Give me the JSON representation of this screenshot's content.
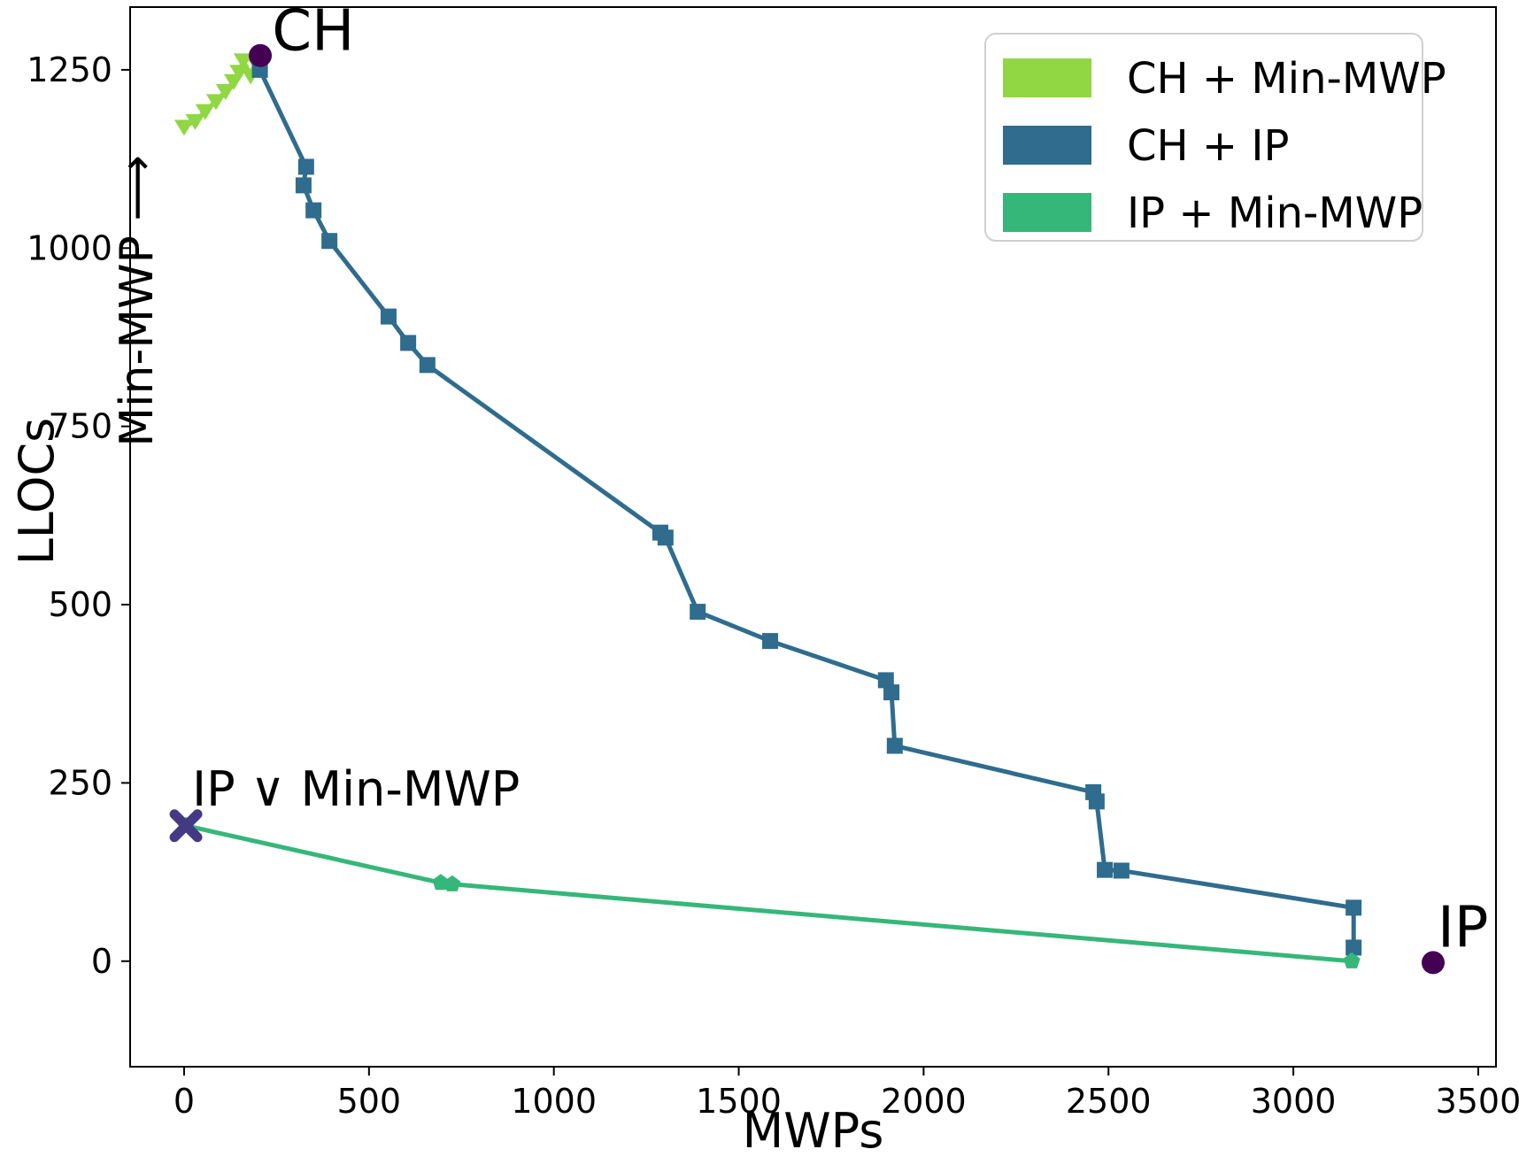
{
  "chart_data": {
    "type": "line",
    "title": "",
    "xlabel": "MWPs",
    "ylabel": "LLOCs",
    "xlim": [
      -146,
      3548
    ],
    "ylim": [
      -148,
      1338
    ],
    "grid": false,
    "x_ticks": [
      0,
      500,
      1000,
      1500,
      2000,
      2500,
      3000,
      3500
    ],
    "y_ticks": [
      0,
      250,
      500,
      750,
      1000,
      1250
    ],
    "series": [
      {
        "name": "CH + Min-MWP",
        "color": "#90d743",
        "marker": "triangle-down",
        "points": [
          [
            0,
            1170
          ],
          [
            30,
            1178
          ],
          [
            57,
            1192
          ],
          [
            86,
            1206
          ],
          [
            112,
            1220
          ],
          [
            134,
            1234
          ],
          [
            149,
            1247
          ],
          [
            160,
            1263
          ],
          [
            180,
            1242
          ],
          [
            193,
            1260
          ]
        ]
      },
      {
        "name": "CH + IP",
        "color": "#2f6c8e",
        "marker": "square",
        "points": [
          [
            205,
            1250
          ],
          [
            330,
            1114
          ],
          [
            323,
            1088
          ],
          [
            350,
            1053
          ],
          [
            393,
            1010
          ],
          [
            553,
            904
          ],
          [
            606,
            867
          ],
          [
            658,
            836
          ],
          [
            1288,
            601
          ],
          [
            1302,
            594
          ],
          [
            1389,
            490
          ],
          [
            1585,
            449
          ],
          [
            1898,
            394
          ],
          [
            1913,
            377
          ],
          [
            1922,
            302
          ],
          [
            2459,
            237
          ],
          [
            2468,
            224
          ],
          [
            2490,
            128
          ],
          [
            2535,
            127
          ],
          [
            3163,
            75
          ],
          [
            3163,
            19
          ]
        ]
      },
      {
        "name": "IP + Min-MWP",
        "color": "#35b779",
        "marker": "pentagon",
        "points": [
          [
            5,
            190
          ],
          [
            694,
            110
          ],
          [
            725,
            108
          ],
          [
            3158,
            0
          ]
        ]
      }
    ],
    "special_points": [
      {
        "id": "ch-point",
        "label": "CH",
        "marker": "circle",
        "color": "#440154",
        "x": 206,
        "y": 1270
      },
      {
        "id": "ip-point",
        "label": "IP",
        "marker": "circle",
        "color": "#440154",
        "x": 3378,
        "y": -2
      },
      {
        "id": "ip-or-minmwp-point",
        "label": "IP ∨ Min-MWP",
        "marker": "x",
        "color": "#443983",
        "x": 5,
        "y": 190
      }
    ],
    "annotations": [
      {
        "id": "ch-label",
        "text": "CH",
        "x": 238,
        "y": 1278,
        "rotation": 0,
        "ha": "start",
        "fontSize": 64
      },
      {
        "id": "ip-label",
        "text": "IP",
        "x": 3390,
        "y": 20,
        "rotation": 0,
        "ha": "start",
        "fontSize": 64
      },
      {
        "id": "ip-or-minmwp-label",
        "text": "IP ∨ Min-MWP",
        "x": 22,
        "y": 218,
        "rotation": 0,
        "ha": "start",
        "fontSize": 54
      },
      {
        "id": "minmwp-direction-label",
        "text": "Min-MWP ⟶",
        "x": -86,
        "y": 926,
        "rotation": -90,
        "ha": "middle",
        "fontSize": 52
      }
    ],
    "legend": {
      "position": "upper right",
      "entries": [
        {
          "label": "CH + Min-MWP",
          "color": "#90d743"
        },
        {
          "label": "CH + IP",
          "color": "#2f6c8e"
        },
        {
          "label": "IP + Min-MWP",
          "color": "#35b779"
        }
      ]
    },
    "style": {
      "spine_color": "#000000",
      "tick_font_size": 38,
      "axis_label_font_size": 54,
      "legend_font_size": 48,
      "line_width": 5,
      "legend_border_color": "#cfcfcf",
      "background": "#ffffff"
    }
  }
}
